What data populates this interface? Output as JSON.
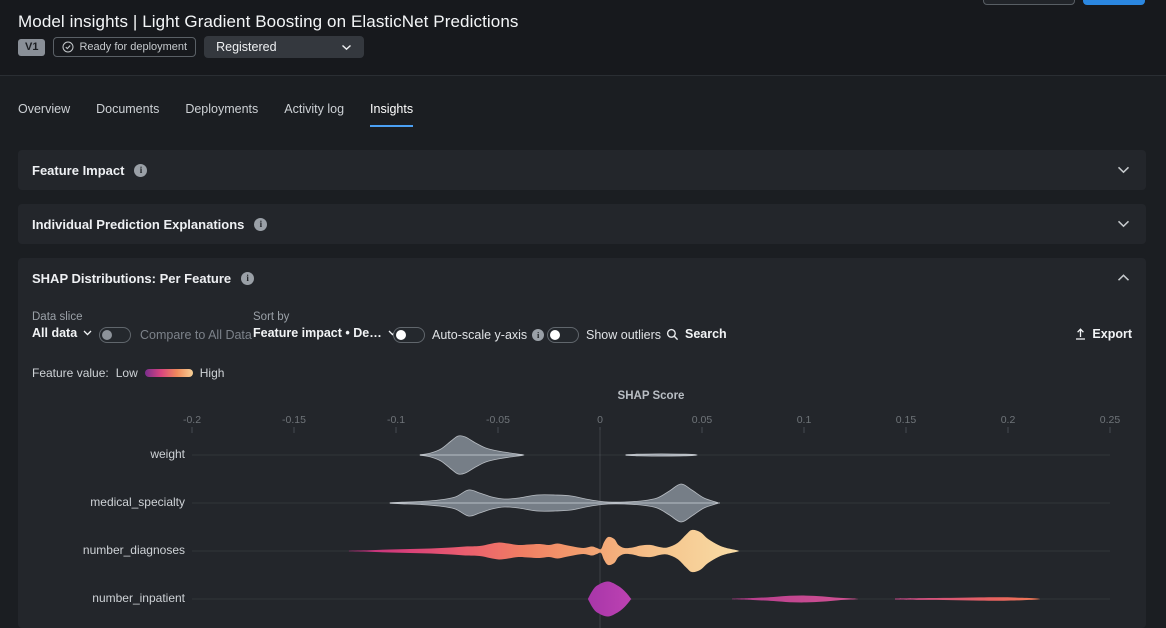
{
  "header": {
    "title": "Model insights | Light Gradient Boosting on ElasticNet Predictions",
    "version_badge": "V1",
    "status_badge": "Ready for deployment",
    "registration": "Registered"
  },
  "tabs": [
    {
      "label": "Overview",
      "active": false
    },
    {
      "label": "Documents",
      "active": false
    },
    {
      "label": "Deployments",
      "active": false
    },
    {
      "label": "Activity log",
      "active": false
    },
    {
      "label": "Insights",
      "active": true
    }
  ],
  "panels": {
    "feature_impact": {
      "title": "Feature Impact",
      "collapsed": true
    },
    "ipe": {
      "title": "Individual Prediction Explanations",
      "collapsed": true
    },
    "shap": {
      "title": "SHAP Distributions: Per Feature",
      "collapsed": false
    }
  },
  "controls": {
    "data_slice_label": "Data slice",
    "data_slice_value": "All data",
    "compare_toggle_label": "Compare to All Data",
    "sort_by_label": "Sort by",
    "sort_by_value": "Feature impact • De…",
    "autoscale_label": "Auto-scale y-axis",
    "outliers_label": "Show outliers",
    "search_label": "Search",
    "export_label": "Export"
  },
  "legend": {
    "prefix": "Feature value:",
    "low": "Low",
    "high": "High",
    "gradient": [
      "#7a2e8e",
      "#d8447f",
      "#f08a5c",
      "#f7d096"
    ]
  },
  "colors": {
    "accent_blue": "#4ba0f4",
    "primary_button_blue": "#2b87e0",
    "panel_bg": "#23262b",
    "page_bg": "#1b1e22",
    "gray_violin": "#7e868f"
  },
  "chart_data": {
    "type": "violin",
    "title": "SHAP Score",
    "xlabel": "SHAP Score",
    "orientation": "horizontal-rows",
    "xlim": [
      -0.22,
      0.27
    ],
    "x_ticks": [
      -0.2,
      -0.15,
      -0.1,
      -0.05,
      0,
      0.05,
      0.1,
      0.15,
      0.2,
      0.25
    ],
    "x_tick_labels": [
      "-0.2",
      "-0.15",
      "-0.1",
      "-0.05",
      "0",
      "0.05",
      "0.1",
      "0.15",
      "0.2",
      "0.25"
    ],
    "zero_line": true,
    "features": [
      {
        "name": "weight",
        "style": "gray",
        "segments": [
          {
            "points": [
              [
                -0.0882,
                0.2
              ],
              [
                -0.083,
                2
              ],
              [
                -0.078,
                6
              ],
              [
                -0.073,
                14
              ],
              [
                -0.0695,
                19
              ],
              [
                -0.066,
                18
              ],
              [
                -0.061,
                12
              ],
              [
                -0.056,
                7
              ],
              [
                -0.05,
                4
              ],
              [
                -0.044,
                2
              ],
              [
                -0.038,
                0.3
              ]
            ]
          },
          {
            "points": [
              [
                0.0127,
                0.2
              ],
              [
                0.018,
                0.8
              ],
              [
                0.03,
                1.1
              ],
              [
                0.042,
                0.8
              ],
              [
                0.047,
                0.2
              ]
            ]
          }
        ]
      },
      {
        "name": "medical_specialty",
        "style": "gray",
        "segments": [
          {
            "points": [
              [
                -0.1029,
                0.2
              ],
              [
                -0.097,
                0.8
              ],
              [
                -0.088,
                1.5
              ],
              [
                -0.079,
                3
              ],
              [
                -0.071,
                6
              ],
              [
                -0.0645,
                13
              ],
              [
                -0.059,
                10
              ],
              [
                -0.053,
                6
              ],
              [
                -0.047,
                4
              ],
              [
                -0.04,
                5
              ],
              [
                -0.031,
                8
              ],
              [
                -0.022,
                8
              ],
              [
                -0.014,
                7
              ],
              [
                -0.007,
                4
              ],
              [
                -0.001,
                2
              ],
              [
                0.004,
                1
              ],
              [
                0.012,
                1
              ],
              [
                0.02,
                2
              ],
              [
                0.028,
                5
              ],
              [
                0.034,
                12
              ],
              [
                0.0397,
                19
              ],
              [
                0.045,
                13
              ],
              [
                0.051,
                5
              ],
              [
                0.0578,
                0.3
              ]
            ]
          }
        ]
      },
      {
        "name": "number_diagnoses",
        "style": "value-gradient",
        "segments": [
          {
            "points": [
              [
                -0.1231,
                0.3
              ],
              [
                -0.113,
                0.8
              ],
              [
                -0.103,
                1.5
              ],
              [
                -0.093,
                2
              ],
              [
                -0.083,
                2.5
              ],
              [
                -0.073,
                3.5
              ],
              [
                -0.066,
                4.5
              ],
              [
                -0.059,
                5
              ],
              [
                -0.054,
                7
              ],
              [
                -0.0495,
                8.5
              ],
              [
                -0.045,
                7.5
              ],
              [
                -0.04,
                6
              ],
              [
                -0.035,
                6.5
              ],
              [
                -0.0295,
                7
              ],
              [
                -0.025,
                6
              ],
              [
                -0.021,
                7.5
              ],
              [
                -0.017,
                6
              ],
              [
                -0.012,
                4
              ],
              [
                -0.008,
                3
              ],
              [
                -0.004,
                4.5
              ],
              [
                -0.0015,
                3
              ],
              [
                0.0005,
                2
              ],
              [
                0.002,
                9
              ],
              [
                0.004,
                14
              ],
              [
                0.007,
                12
              ],
              [
                0.009,
                6
              ],
              [
                0.012,
                3
              ],
              [
                0.016,
                3.5
              ],
              [
                0.02,
                5.5
              ],
              [
                0.025,
                6
              ],
              [
                0.029,
                4
              ],
              [
                0.033,
                3.5
              ],
              [
                0.038,
                8
              ],
              [
                0.042,
                16
              ],
              [
                0.045,
                21
              ],
              [
                0.049,
                19
              ],
              [
                0.053,
                12
              ],
              [
                0.058,
                6
              ],
              [
                0.062,
                3
              ],
              [
                0.0676,
                0.5
              ]
            ],
            "gradient": [
              {
                "o": 0,
                "c": "#b92d7f"
              },
              {
                "o": 0.15,
                "c": "#d84179"
              },
              {
                "o": 0.3,
                "c": "#ea5e6e"
              },
              {
                "o": 0.45,
                "c": "#f07f63"
              },
              {
                "o": 0.58,
                "c": "#f29a6c"
              },
              {
                "o": 0.7,
                "c": "#f4b27e"
              },
              {
                "o": 0.82,
                "c": "#f6c78f"
              },
              {
                "o": 1,
                "c": "#f8dca6"
              }
            ]
          }
        ]
      },
      {
        "name": "number_inpatient",
        "style": "value-gradient",
        "segments": [
          {
            "points": [
              [
                -0.0059,
                0.3
              ],
              [
                -0.0035,
                9
              ],
              [
                -0.001,
                14
              ],
              [
                0.0039,
                17.5
              ],
              [
                0.009,
                13
              ],
              [
                0.0125,
                7
              ],
              [
                0.0152,
                0.3
              ]
            ],
            "gradient": [
              {
                "o": 0,
                "c": "#a836a9"
              },
              {
                "o": 1,
                "c": "#bc42b2"
              }
            ]
          },
          {
            "points": [
              [
                0.0647,
                0.3
              ],
              [
                0.075,
                1
              ],
              [
                0.085,
                2
              ],
              [
                0.093,
                3.2
              ],
              [
                0.101,
                3.4
              ],
              [
                0.109,
                2.6
              ],
              [
                0.117,
                1.2
              ],
              [
                0.1255,
                0.3
              ]
            ],
            "gradient": [
              {
                "o": 0,
                "c": "#b53c8d"
              },
              {
                "o": 1,
                "c": "#d15394"
              }
            ]
          },
          {
            "points": [
              [
                0.1446,
                0.5
              ],
              [
                0.158,
                0.9
              ],
              [
                0.172,
                1.1
              ],
              [
                0.186,
                1.6
              ],
              [
                0.198,
                1.7
              ],
              [
                0.207,
                1.2
              ],
              [
                0.2147,
                0.4
              ]
            ],
            "gradient": [
              {
                "o": 0,
                "c": "#c94b8d"
              },
              {
                "o": 0.7,
                "c": "#e8635f"
              },
              {
                "o": 1,
                "c": "#f07a57"
              }
            ]
          }
        ]
      }
    ]
  }
}
